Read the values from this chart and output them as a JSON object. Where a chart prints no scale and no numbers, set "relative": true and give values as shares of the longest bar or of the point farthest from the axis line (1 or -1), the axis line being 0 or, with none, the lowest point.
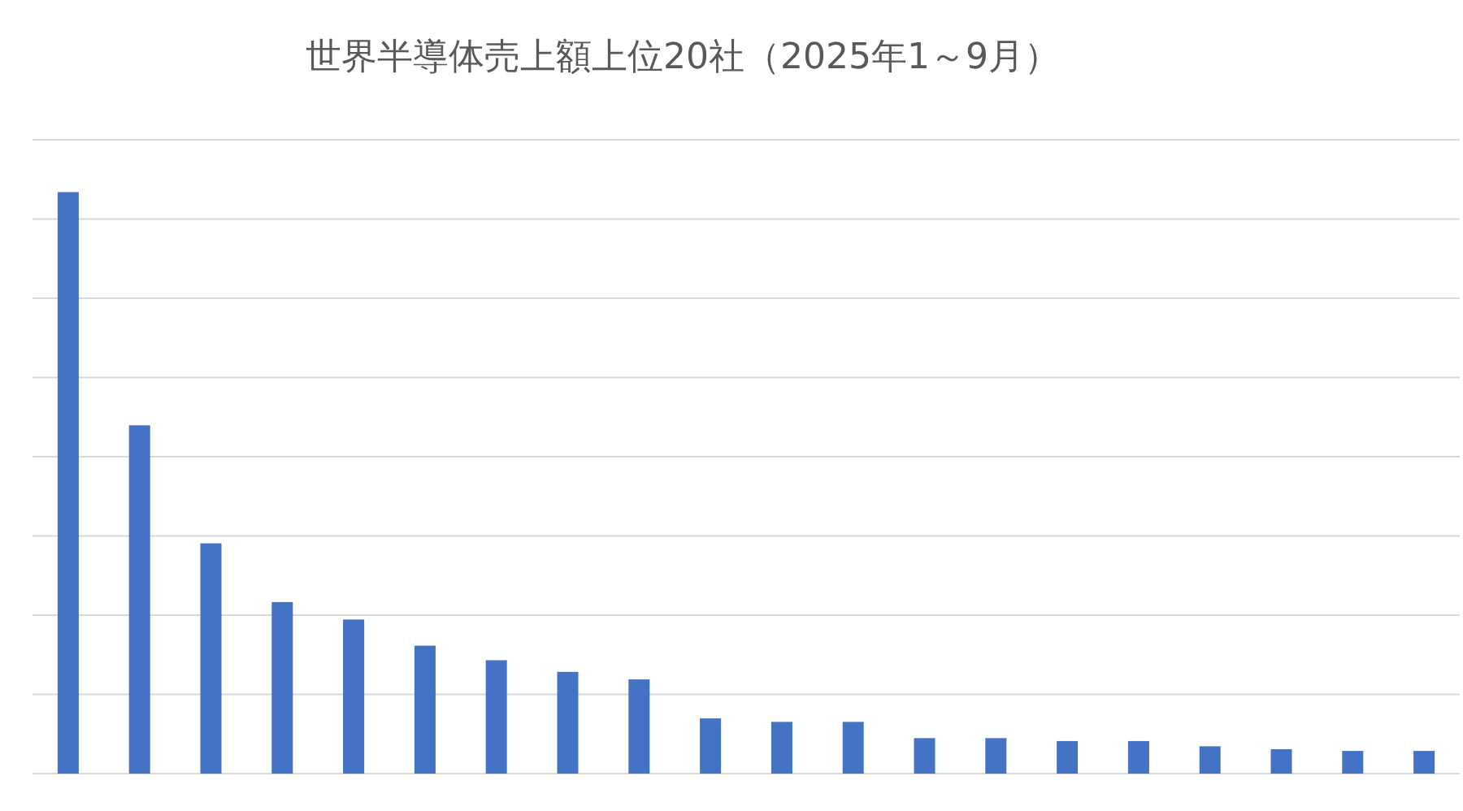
{
  "chart_data": {
    "type": "bar",
    "title": "世界半導体売上額上位20社（2025年1～9月）",
    "relative": true,
    "grid": "y",
    "color": "#4472c4",
    "categories": [
      null,
      null,
      null,
      null,
      null,
      null,
      null,
      null,
      null,
      null,
      null,
      null,
      null,
      null,
      null,
      null,
      null,
      null,
      null,
      null
    ],
    "values": [
      1,
      0.599,
      0.396,
      0.295,
      0.265,
      0.22,
      0.195,
      0.175,
      0.162,
      0.095,
      0.089,
      0.089,
      0.061,
      0.061,
      0.056,
      0.056,
      0.047,
      0.042,
      0.039,
      0.039
    ]
  }
}
